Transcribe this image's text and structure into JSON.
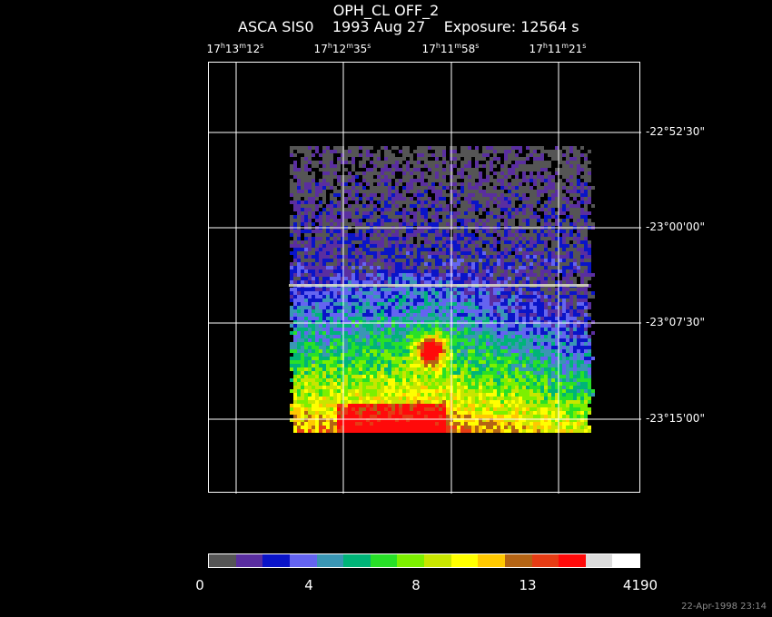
{
  "title": "OPH_CL OFF_2",
  "subtitle": "ASCA SIS0    1993 Aug 27    Exposure: 12564 s",
  "ra_ticks": [
    "17h13m12s",
    "17h12m35s",
    "17h11m58s",
    "17h11m21s"
  ],
  "ra_ticks_display": [
    {
      "h": "17",
      "m": "13",
      "s": "12"
    },
    {
      "h": "17",
      "m": "12",
      "s": "35"
    },
    {
      "h": "17",
      "m": "11",
      "s": "58"
    },
    {
      "h": "17",
      "m": "11",
      "s": "21"
    }
  ],
  "dec_ticks": [
    "-22°52'30\"",
    "-23°00'00\"",
    "-23°07'30\"",
    "-23°15'00\""
  ],
  "colorbar": {
    "colors": [
      "#555555",
      "#5a2ea0",
      "#0a14c8",
      "#6464f0",
      "#3a96b4",
      "#00b478",
      "#28e028",
      "#7cf000",
      "#c8e600",
      "#ffff00",
      "#ffc800",
      "#b46414",
      "#e63c14",
      "#ff0a0a",
      "#dcdcdc",
      "#ffffff"
    ],
    "labels": [
      "0",
      "4",
      "8",
      "13",
      "4190"
    ]
  },
  "timestamp": "22-Apr-1998 23:14"
}
